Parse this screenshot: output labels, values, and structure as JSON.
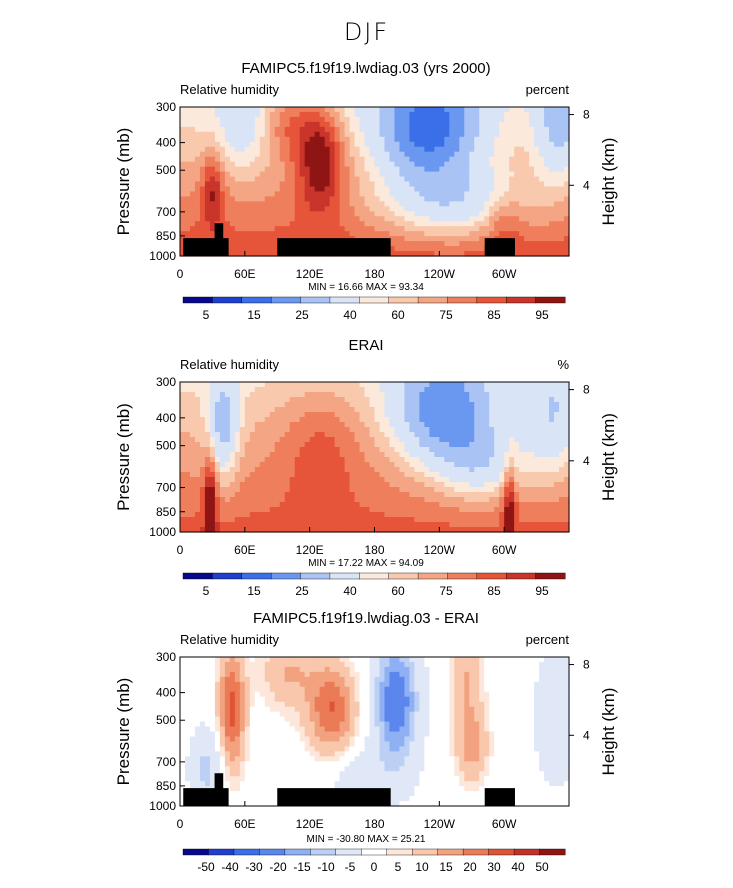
{
  "figure_title": "DJF",
  "colors": {
    "abs_levels": [
      "#08088c",
      "#1f3fd0",
      "#3a6fe8",
      "#6a98f0",
      "#a9c3f5",
      "#d9e4f7",
      "#fbe9dc",
      "#f9c9ad",
      "#f4a584",
      "#ef7e5d",
      "#e6553a",
      "#c9352a",
      "#8f1515"
    ],
    "diff_levels": [
      "#08088c",
      "#1f3fd0",
      "#3a6fe8",
      "#5b86ee",
      "#8fb0f2",
      "#bcd0f5",
      "#e0e8f8",
      "#ffffff",
      "#fce7da",
      "#f9c7ac",
      "#f2a27f",
      "#eb7a57",
      "#dd5436",
      "#c0332a",
      "#8f1515"
    ],
    "land": "#000000"
  },
  "chart_data": [
    {
      "type": "heatmap",
      "title": "FAMIPC5.f19f19.lwdiag.03 (yrs 2000)",
      "variable_label": "Relative humidity",
      "units_label": "percent",
      "ylabel": "Pressure (mb)",
      "ylabel_right": "Height (km)",
      "y_ticks": [
        300,
        400,
        500,
        700,
        850,
        1000
      ],
      "y_right_ticks": [
        8,
        4
      ],
      "ylim": [
        1000,
        300
      ],
      "x_ticks": [
        "0",
        "60E",
        "120E",
        "180",
        "120W",
        "60W"
      ],
      "xlim": [
        0,
        360
      ],
      "stats": {
        "min_label": "MIN =",
        "min": "16.66",
        "max_label": "MAX =",
        "max": "93.34"
      },
      "colorbar_labels": [
        "5",
        "15",
        "25",
        "40",
        "60",
        "75",
        "85",
        "95"
      ],
      "mode": "model"
    },
    {
      "type": "heatmap",
      "title": "ERAI",
      "variable_label": "Relative humidity",
      "units_label": "%",
      "ylabel": "Pressure (mb)",
      "ylabel_right": "Height (km)",
      "y_ticks": [
        300,
        400,
        500,
        700,
        850,
        1000
      ],
      "y_right_ticks": [
        8,
        4
      ],
      "ylim": [
        1000,
        300
      ],
      "x_ticks": [
        "0",
        "60E",
        "120E",
        "180",
        "120W",
        "60W"
      ],
      "xlim": [
        0,
        360
      ],
      "stats": {
        "min_label": "MIN =",
        "min": "17.22",
        "max_label": "MAX =",
        "max": "94.09"
      },
      "colorbar_labels": [
        "5",
        "15",
        "25",
        "40",
        "60",
        "75",
        "85",
        "95"
      ],
      "mode": "obs"
    },
    {
      "type": "heatmap",
      "title": "FAMIPC5.f19f19.lwdiag.03 - ERAI",
      "variable_label": "Relative humidity",
      "units_label": "percent",
      "ylabel": "Pressure (mb)",
      "ylabel_right": "Height (km)",
      "y_ticks": [
        300,
        400,
        500,
        700,
        850,
        1000
      ],
      "y_right_ticks": [
        8,
        4
      ],
      "ylim": [
        1000,
        300
      ],
      "x_ticks": [
        "0",
        "60E",
        "120E",
        "180",
        "120W",
        "60W"
      ],
      "xlim": [
        0,
        360
      ],
      "stats": {
        "min_label": "MIN =",
        "min": "-30.80",
        "max_label": "MAX =",
        "max": "25.21"
      },
      "colorbar_labels": [
        "-50",
        "-40",
        "-30",
        "-20",
        "-15",
        "-10",
        "-5",
        "0",
        "5",
        "10",
        "15",
        "20",
        "30",
        "40",
        "50"
      ],
      "mode": "diff"
    }
  ]
}
